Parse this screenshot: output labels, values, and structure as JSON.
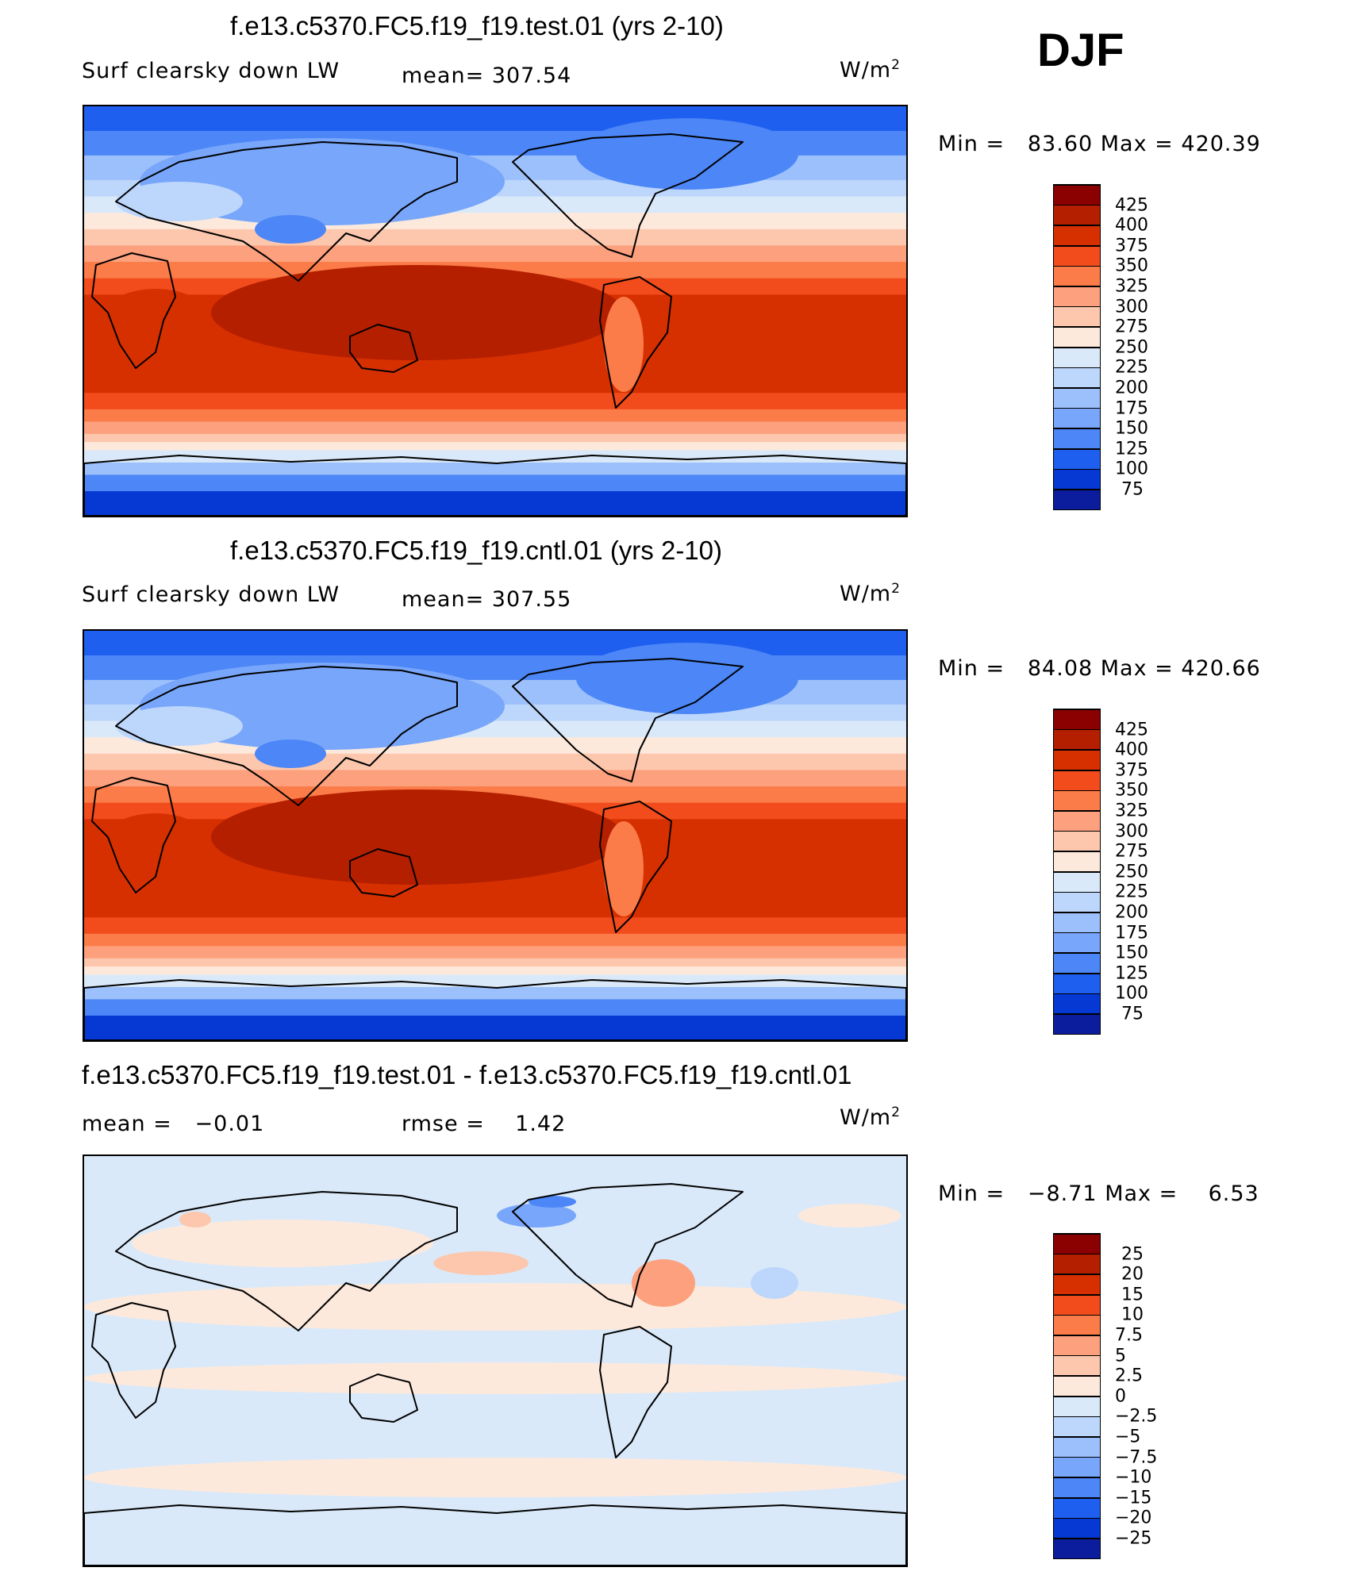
{
  "season": "DJF",
  "units_main": "W/m",
  "units_exp": "2",
  "chart_data": [
    {
      "type": "heatmap",
      "id": "test",
      "title": "f.e13.c5370.FC5.f19_f19.test.01 (yrs 2-10)",
      "variable": "Surf clearsky down LW",
      "mean_label": "mean=",
      "mean": "307.54",
      "min_label": "Min =",
      "min": "83.60",
      "max_label": "Max =",
      "max": "420.39",
      "levels": [
        "425",
        "400",
        "375",
        "350",
        "325",
        "300",
        "275",
        "250",
        "225",
        "200",
        "175",
        "150",
        "125",
        "100",
        "75"
      ],
      "colors": [
        "#8b0000",
        "#b41f00",
        "#d73000",
        "#f24b1c",
        "#fb7c48",
        "#fca07e",
        "#fcc7ad",
        "#fde9dc",
        "#d9e9f9",
        "#bdd6fb",
        "#9cc0fb",
        "#78a6fa",
        "#4c86f7",
        "#1f5ff0",
        "#0638d3",
        "#0b1c9c"
      ]
    },
    {
      "type": "heatmap",
      "id": "cntl",
      "title": "f.e13.c5370.FC5.f19_f19.cntl.01 (yrs 2-10)",
      "variable": "Surf clearsky down LW",
      "mean_label": "mean=",
      "mean": "307.55",
      "min_label": "Min =",
      "min": "84.08",
      "max_label": "Max =",
      "max": "420.66",
      "levels": [
        "425",
        "400",
        "375",
        "350",
        "325",
        "300",
        "275",
        "250",
        "225",
        "200",
        "175",
        "150",
        "125",
        "100",
        "75"
      ],
      "colors": [
        "#8b0000",
        "#b41f00",
        "#d73000",
        "#f24b1c",
        "#fb7c48",
        "#fca07e",
        "#fcc7ad",
        "#fde9dc",
        "#d9e9f9",
        "#bdd6fb",
        "#9cc0fb",
        "#78a6fa",
        "#4c86f7",
        "#1f5ff0",
        "#0638d3",
        "#0b1c9c"
      ]
    },
    {
      "type": "heatmap",
      "id": "diff",
      "title": "f.e13.c5370.FC5.f19_f19.test.01 - f.e13.c5370.FC5.f19_f19.cntl.01",
      "mean_label": "mean =",
      "mean": "−0.01",
      "rmse_label": "rmse =",
      "rmse": "1.42",
      "min_label": "Min =",
      "min": "−8.71",
      "max_label": "Max =",
      "max": "6.53",
      "levels": [
        "25",
        "20",
        "15",
        "10",
        "7.5",
        "5",
        "2.5",
        "0",
        "−2.5",
        "−5",
        "−7.5",
        "−10",
        "−15",
        "−20",
        "−25"
      ],
      "colors": [
        "#8b0000",
        "#b41f00",
        "#d73000",
        "#f24b1c",
        "#fb7c48",
        "#fca07e",
        "#fcc7ad",
        "#fde9dc",
        "#d9e9f9",
        "#bdd6fb",
        "#9cc0fb",
        "#78a6fa",
        "#4c86f7",
        "#1f5ff0",
        "#0638d3",
        "#0b1c9c"
      ]
    }
  ]
}
